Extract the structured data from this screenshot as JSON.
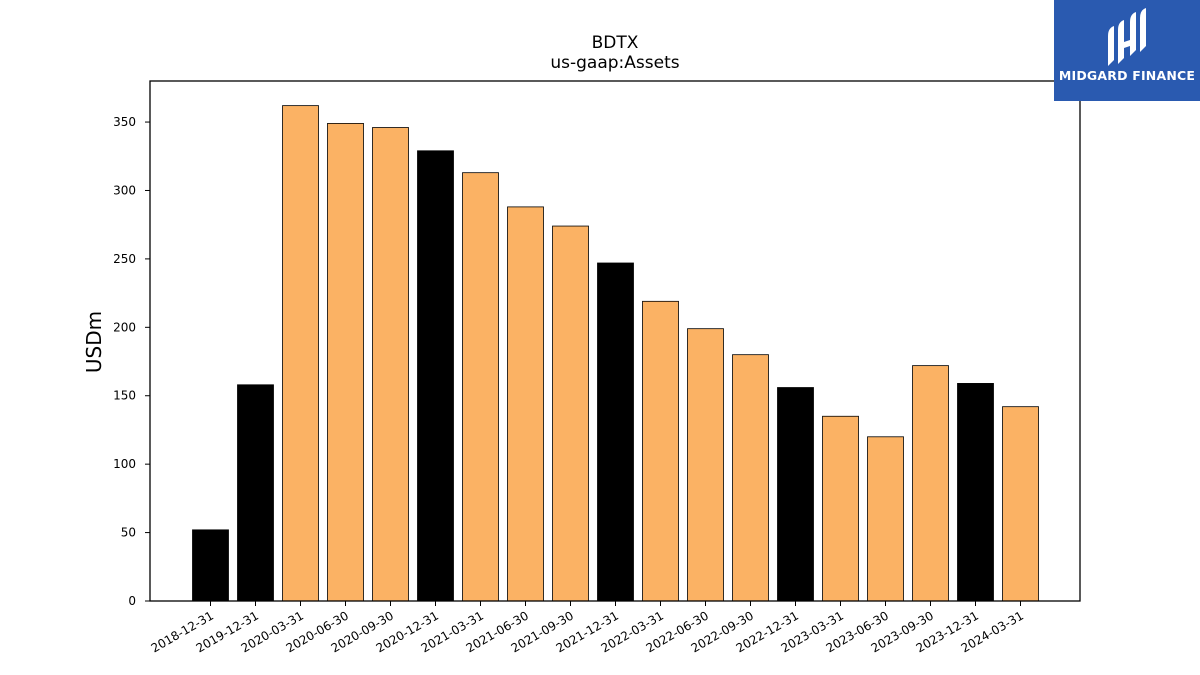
{
  "chart_data": {
    "type": "bar",
    "title": "BDTX",
    "subtitle": "us-gaap:Assets",
    "xlabel": "",
    "ylabel": "USDm",
    "ylim": [
      0,
      380
    ],
    "yticks": [
      0,
      50,
      100,
      150,
      200,
      250,
      300,
      350
    ],
    "grid": false,
    "categories": [
      "2018-12-31",
      "2019-12-31",
      "2020-03-31",
      "2020-06-30",
      "2020-09-30",
      "2020-12-31",
      "2021-03-31",
      "2021-06-30",
      "2021-09-30",
      "2021-12-31",
      "2022-03-31",
      "2022-06-30",
      "2022-09-30",
      "2022-12-31",
      "2023-03-31",
      "2023-06-30",
      "2023-09-30",
      "2023-12-31",
      "2024-03-31"
    ],
    "values": [
      52,
      158,
      362,
      349,
      346,
      329,
      313,
      288,
      274,
      247,
      219,
      199,
      180,
      156,
      135,
      120,
      172,
      159,
      142
    ],
    "colors": [
      "#000000",
      "#000000",
      "#fbb264",
      "#fbb264",
      "#fbb264",
      "#000000",
      "#fbb264",
      "#fbb264",
      "#fbb264",
      "#000000",
      "#fbb264",
      "#fbb264",
      "#fbb264",
      "#000000",
      "#fbb264",
      "#fbb264",
      "#fbb264",
      "#000000",
      "#fbb264"
    ]
  },
  "logo": {
    "text": "MIDGARD FINANCE",
    "background": "#2a5ab0"
  }
}
